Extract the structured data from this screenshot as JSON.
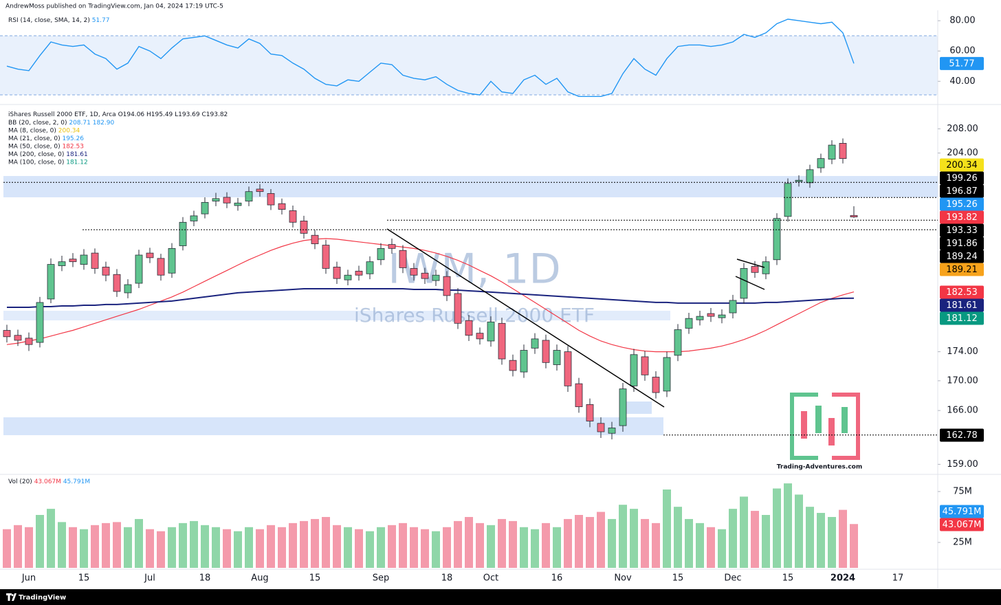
{
  "header": {
    "publisher": "AndrewMoss published on TradingView.com, Jan 04, 2024 17:19 UTC-5"
  },
  "footer": {
    "brand": "TradingView"
  },
  "logo": {
    "text": "Trading-Adventures.com"
  },
  "chart_data": [
    {
      "type": "line",
      "title": "RSI (14, close, SMA, 14, 2)",
      "color": "#2196f3",
      "last": 51.77,
      "ylim": [
        26.5,
        84.6
      ],
      "yticks": [
        {
          "value": 40,
          "label": "40.00"
        },
        {
          "value": 60,
          "label": "60.00"
        },
        {
          "value": 80,
          "label": "80.00"
        }
      ],
      "values": [
        50,
        48,
        47,
        57,
        66,
        64,
        63,
        64,
        58,
        55,
        48,
        52,
        63,
        60,
        55,
        62,
        68,
        69,
        70,
        67,
        64,
        62,
        68,
        65,
        58,
        57,
        52,
        48,
        42,
        38,
        37,
        41,
        40,
        46,
        52,
        51,
        44,
        42,
        41,
        43,
        38,
        34,
        32,
        31,
        40,
        33,
        32,
        41,
        44,
        38,
        42,
        33,
        30,
        30,
        30,
        32,
        45,
        55,
        48,
        44,
        55,
        63,
        64,
        64,
        63,
        64,
        66,
        71,
        69,
        72,
        78,
        81,
        80,
        79,
        78,
        79,
        72,
        51.77,
        null,
        null,
        null,
        null
      ]
    },
    {
      "type": "candlestick",
      "title": "iShares Russell 2000 ETF, 1D, Arca",
      "ohlc_text": "O194.06 H195.49 L193.69 C193.82",
      "watermark": "IWM, 1D",
      "watermark_subtitle": "iShares Russell 2000 ETF",
      "log_scale": true,
      "up_color": "#5fc48f",
      "down_color": "#f0667e",
      "ylim": [
        157.9,
        211.5
      ],
      "yticks": [
        {
          "value": 159,
          "label": "159.00"
        },
        {
          "value": 166,
          "label": "166.00"
        },
        {
          "value": 170,
          "label": "170.00"
        },
        {
          "value": 174,
          "label": "174.00"
        },
        {
          "value": 204,
          "label": "204.00"
        },
        {
          "value": 208,
          "label": "208.00"
        }
      ],
      "open": [
        177.0,
        176.3,
        175.9,
        175.3,
        181.5,
        186.4,
        187.4,
        186.6,
        188.3,
        186.2,
        185.1,
        182.4,
        183.8,
        188.3,
        187.5,
        185.3,
        189.4,
        193.2,
        194.3,
        196.3,
        196.9,
        195.6,
        196.3,
        198.2,
        197.5,
        195.9,
        194.8,
        193.2,
        191.0,
        189.5,
        186.2,
        184.3,
        185.6,
        185.2,
        187.3,
        189.6,
        188.7,
        186.0,
        185.3,
        184.2,
        184.8,
        182.3,
        178.4,
        176.6,
        175.5,
        178.0,
        172.8,
        171.2,
        174.5,
        175.6,
        172.2,
        174.0,
        169.6,
        166.8,
        164.3,
        163.0,
        164.0,
        169.3,
        173.3,
        170.5,
        168.6,
        173.5,
        177.3,
        178.5,
        179.4,
        178.8,
        179.5,
        181.6,
        186.3,
        185.2,
        187.3,
        193.9,
        199.4,
        199.2,
        201.6,
        203.0,
        205.6,
        194.06,
        null,
        null,
        null,
        null
      ],
      "high": [
        177.8,
        177.1,
        176.7,
        181.8,
        187.5,
        187.9,
        188.3,
        188.9,
        189.0,
        187.0,
        185.9,
        184.4,
        188.8,
        189.1,
        188.2,
        189.8,
        193.8,
        194.8,
        196.9,
        197.6,
        197.7,
        196.8,
        198.6,
        199.0,
        198.2,
        196.7,
        195.6,
        194.0,
        191.8,
        190.3,
        187.0,
        185.8,
        186.4,
        187.8,
        189.8,
        190.5,
        189.5,
        186.8,
        186.1,
        185.8,
        185.6,
        183.1,
        179.2,
        177.4,
        179.0,
        178.8,
        173.6,
        175.0,
        176.6,
        176.4,
        175.0,
        174.8,
        170.4,
        167.6,
        165.1,
        164.5,
        169.7,
        174.4,
        174.1,
        171.3,
        174.0,
        177.9,
        179.5,
        179.8,
        180.2,
        180.0,
        182.1,
        186.8,
        187.1,
        187.8,
        194.4,
        199.9,
        200.4,
        202.1,
        203.9,
        206.1,
        206.4,
        195.49,
        null,
        null,
        null,
        null
      ],
      "low": [
        175.3,
        174.8,
        174.1,
        174.6,
        180.9,
        185.6,
        186.2,
        185.8,
        185.2,
        184.1,
        181.8,
        181.6,
        183.1,
        186.8,
        184.2,
        184.6,
        188.7,
        192.4,
        193.6,
        195.5,
        195.2,
        194.8,
        195.5,
        197.0,
        194.9,
        194.2,
        192.2,
        190.5,
        188.9,
        185.2,
        183.7,
        183.5,
        184.2,
        184.4,
        186.5,
        188.2,
        185.3,
        184.2,
        183.7,
        183.4,
        181.2,
        177.2,
        175.5,
        175.0,
        174.7,
        172.2,
        170.6,
        170.4,
        173.7,
        171.7,
        171.4,
        168.5,
        165.7,
        163.8,
        162.4,
        162.2,
        163.2,
        168.5,
        170.0,
        167.6,
        167.8,
        172.7,
        176.5,
        177.7,
        178.2,
        178.0,
        178.7,
        180.8,
        184.6,
        184.4,
        186.5,
        193.1,
        198.6,
        198.4,
        200.8,
        202.2,
        202.3,
        193.69,
        null,
        null,
        null,
        null
      ],
      "close": [
        176.1,
        175.6,
        175.0,
        181.0,
        186.6,
        187.0,
        187.0,
        188.0,
        186.0,
        185.0,
        182.6,
        183.6,
        188.0,
        187.6,
        185.0,
        189.0,
        193.0,
        194.0,
        196.1,
        196.7,
        196.0,
        196.0,
        197.8,
        197.8,
        195.7,
        195.0,
        193.0,
        191.3,
        189.7,
        186.0,
        184.5,
        185.0,
        185.0,
        187.0,
        189.0,
        189.0,
        186.1,
        185.0,
        184.5,
        185.0,
        182.0,
        178.0,
        176.3,
        175.8,
        178.2,
        173.0,
        171.4,
        174.2,
        175.8,
        172.5,
        174.2,
        169.3,
        166.5,
        164.6,
        163.2,
        163.7,
        168.9,
        173.6,
        170.8,
        168.4,
        173.2,
        177.1,
        178.7,
        179.0,
        179.0,
        179.2,
        181.3,
        186.0,
        185.4,
        187.0,
        193.6,
        199.1,
        199.6,
        201.3,
        203.1,
        205.3,
        203.1,
        193.82,
        null,
        null,
        null,
        null
      ],
      "legend": [
        {
          "name": "BB (20, close, 2, 0)",
          "text": "208.71  182.90",
          "color": "#2196f3"
        },
        {
          "name": "MA (8, close, 0)",
          "value": 200.34,
          "color": "#e8c20c"
        },
        {
          "name": "MA (21, close, 0)",
          "value": 195.26,
          "color": "#2196f3"
        },
        {
          "name": "MA (50, close, 0)",
          "value": 182.53,
          "color": "#f23645",
          "values": [
            175.0,
            175.2,
            175.5,
            175.8,
            176.2,
            176.6,
            177.0,
            177.5,
            178.0,
            178.5,
            179.0,
            179.5,
            180.0,
            180.6,
            181.2,
            181.8,
            182.5,
            183.3,
            184.1,
            184.9,
            185.7,
            186.5,
            187.3,
            188.0,
            188.7,
            189.3,
            189.8,
            190.2,
            190.4,
            190.5,
            190.4,
            190.2,
            190.0,
            189.8,
            189.6,
            189.4,
            189.2,
            189.0,
            188.7,
            188.3,
            187.8,
            187.2,
            186.5,
            185.7,
            184.9,
            184.0,
            183.0,
            182.0,
            181.0,
            180.0,
            179.0,
            178.0,
            177.0,
            176.2,
            175.5,
            175.0,
            174.6,
            174.3,
            174.1,
            174.0,
            174.0,
            174.0,
            174.1,
            174.3,
            174.5,
            174.8,
            175.2,
            175.7,
            176.3,
            177.0,
            177.8,
            178.6,
            179.4,
            180.2,
            181.0,
            181.6,
            182.1,
            182.53,
            null,
            null,
            null,
            null
          ]
        },
        {
          "name": "MA (200, close, 0)",
          "value": 181.61,
          "color": "#1a237e",
          "values": [
            180.3,
            180.3,
            180.3,
            180.4,
            180.4,
            180.5,
            180.5,
            180.6,
            180.6,
            180.7,
            180.7,
            180.8,
            180.9,
            181.0,
            181.1,
            181.2,
            181.4,
            181.6,
            181.8,
            182.0,
            182.2,
            182.4,
            182.5,
            182.6,
            182.7,
            182.8,
            182.9,
            183.0,
            183.0,
            183.0,
            183.0,
            183.0,
            183.0,
            183.0,
            183.0,
            183.0,
            183.0,
            182.9,
            182.9,
            182.9,
            182.8,
            182.8,
            182.7,
            182.6,
            182.5,
            182.4,
            182.3,
            182.2,
            182.1,
            182.0,
            181.9,
            181.8,
            181.7,
            181.6,
            181.5,
            181.4,
            181.3,
            181.2,
            181.1,
            181.0,
            181.0,
            180.9,
            180.9,
            180.9,
            180.9,
            180.9,
            180.9,
            180.9,
            180.9,
            181.0,
            181.0,
            181.1,
            181.2,
            181.3,
            181.4,
            181.5,
            181.6,
            181.61,
            null,
            null,
            null,
            null
          ]
        },
        {
          "name": "MA (100, close, 0)",
          "value": 181.12,
          "color": "#089981"
        }
      ],
      "price_labels": [
        {
          "value": 200.34,
          "color": "#f5e11b"
        },
        {
          "value": 199.26,
          "color": "#000000",
          "line": true
        },
        {
          "value": 196.87,
          "color": "#000000",
          "line": true
        },
        {
          "value": 195.26,
          "color": "#2196f3"
        },
        {
          "value": 193.82,
          "color": "#f23645"
        },
        {
          "value": 193.33,
          "color": "#000000",
          "line": true
        },
        {
          "value": 191.86,
          "color": "#000000",
          "line": true
        },
        {
          "value": 189.24,
          "color": "#000000"
        },
        {
          "value": 189.21,
          "color": "#f7a21b"
        },
        {
          "value": 182.53,
          "color": "#f23645"
        },
        {
          "value": 181.61,
          "color": "#1a237e"
        },
        {
          "value": 181.12,
          "color": "#089981"
        },
        {
          "value": 162.78,
          "color": "#000000",
          "line": true
        }
      ]
    },
    {
      "type": "bar",
      "title": "Vol (20)",
      "up_color": "#8fd6a8",
      "down_color": "#f49aab",
      "ylim": [
        0,
        85.1
      ],
      "yticks": [
        {
          "value": 25,
          "label": "25M"
        },
        {
          "value": 75,
          "label": "75M"
        }
      ],
      "badges": [
        {
          "value": 45.791,
          "label": "45.791M",
          "color": "#2196f3"
        },
        {
          "value": 43.067,
          "label": "43.067M",
          "color": "#f23645"
        }
      ],
      "categories": [
        null,
        null,
        "Jun",
        null,
        null,
        null,
        null,
        "15",
        null,
        null,
        null,
        null,
        null,
        "Jul",
        null,
        null,
        null,
        null,
        "18",
        null,
        null,
        null,
        null,
        "Aug",
        null,
        null,
        null,
        null,
        "15",
        null,
        null,
        null,
        null,
        null,
        "Sep",
        null,
        null,
        null,
        null,
        null,
        "18",
        null,
        null,
        null,
        "Oct",
        null,
        null,
        null,
        null,
        null,
        "16",
        null,
        null,
        null,
        null,
        null,
        "Nov",
        null,
        null,
        null,
        null,
        "15",
        null,
        null,
        null,
        null,
        "Dec",
        null,
        null,
        null,
        null,
        "15",
        null,
        null,
        null,
        null,
        "2024",
        null,
        null,
        null,
        null,
        "17"
      ],
      "values": [
        38,
        42,
        40,
        52,
        58,
        45,
        40,
        38,
        42,
        44,
        45,
        40,
        48,
        38,
        36,
        40,
        44,
        46,
        42,
        40,
        38,
        36,
        40,
        38,
        42,
        40,
        44,
        46,
        48,
        50,
        42,
        40,
        38,
        36,
        40,
        42,
        44,
        40,
        38,
        36,
        40,
        46,
        50,
        44,
        42,
        48,
        46,
        40,
        38,
        44,
        40,
        48,
        52,
        50,
        55,
        48,
        62,
        58,
        48,
        44,
        77,
        60,
        48,
        44,
        40,
        38,
        58,
        70,
        56,
        52,
        78,
        83,
        72,
        60,
        54,
        50,
        57,
        43.067,
        null,
        null,
        null,
        null
      ]
    }
  ]
}
